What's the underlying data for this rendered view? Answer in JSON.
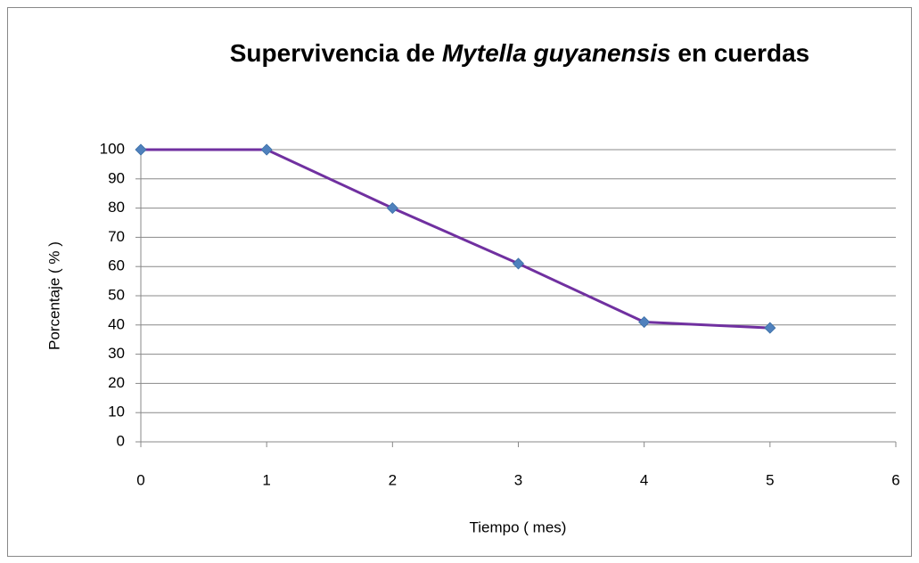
{
  "chart_data": {
    "type": "line",
    "title": [
      "Supervivencia  de",
      "Mytella guyanensis",
      "en cuerdas"
    ],
    "x_label": "Tiempo ( mes)",
    "y_label": "Porcentaje ( % )",
    "x": [
      0,
      1,
      2,
      3,
      4,
      5
    ],
    "series": [
      {
        "name": "Supervivencia",
        "color": "#7030a0",
        "marker_color": "#4f81bd",
        "values": [
          100,
          100,
          80,
          61,
          41,
          39
        ]
      }
    ],
    "xlim": [
      0,
      6
    ],
    "xticks": [
      0,
      1,
      2,
      3,
      4,
      5,
      6
    ],
    "ylim": [
      0,
      100
    ],
    "yticks": [
      0,
      10,
      20,
      30,
      40,
      50,
      60,
      70,
      80,
      90,
      100
    ],
    "grid": true
  }
}
